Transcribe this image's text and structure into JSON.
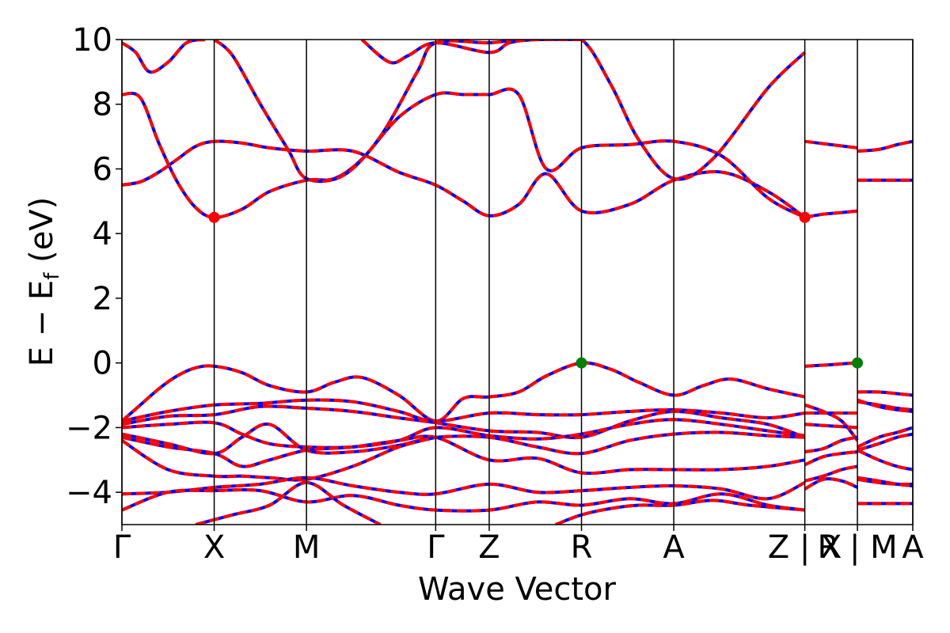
{
  "chart_data": {
    "type": "line",
    "xlabel": "Wave Vector",
    "ylabel": "E − E",
    "ylabel_sub": "f",
    "ylabel_unit": " (eV)",
    "ylim": [
      -5,
      10
    ],
    "y_ticks": [
      -4,
      -2,
      0,
      2,
      4,
      6,
      8,
      10
    ],
    "grid": false,
    "colors": {
      "band_primary": "#ff0000",
      "band_secondary": "#0000ff",
      "cbm_marker": "#ff0000",
      "vbm_marker": "#008000"
    },
    "kpath_segments": [
      {
        "labels": [
          "Γ",
          "X",
          "M",
          "Γ",
          "Z",
          "R",
          "A",
          "Z"
        ],
        "x": [
          0,
          1,
          2,
          3.4,
          3.98,
          4.98,
          5.98,
          7.4
        ]
      },
      {
        "labels": [
          "X",
          "R"
        ],
        "x": [
          7.4,
          7.97
        ]
      },
      {
        "labels": [
          "M",
          "A"
        ],
        "x": [
          7.97,
          8.57
        ]
      }
    ],
    "x_tick_labels": [
      "Γ",
      "X",
      "M",
      "Γ",
      "Z",
      "R",
      "A",
      "Z | X",
      "R | M",
      "A"
    ],
    "x_ticks": [
      0,
      1,
      2,
      3.4,
      3.98,
      4.98,
      5.98,
      7.4,
      7.97,
      8.57
    ],
    "xlim": [
      0,
      8.57
    ],
    "markers": [
      {
        "name": "CBM",
        "x": 1,
        "y": 4.5,
        "color": "#ff0000"
      },
      {
        "name": "CBM",
        "x": 7.4,
        "y": 4.5,
        "color": "#ff0000"
      },
      {
        "name": "VBM",
        "x": 4.98,
        "y": 0.0,
        "color": "#008000"
      },
      {
        "name": "VBM",
        "x": 7.97,
        "y": 0.0,
        "color": "#008000"
      }
    ],
    "series": [
      {
        "segment": 0,
        "x": [
          0,
          0.2,
          0.4,
          0.6,
          0.8,
          1.0,
          1.3,
          1.6,
          2.0,
          2.5,
          3.0,
          3.4,
          3.7,
          3.98,
          4.3,
          4.6,
          4.98,
          5.5,
          5.98,
          6.5,
          7.0,
          7.4
        ],
        "y": [
          5.5,
          5.6,
          5.9,
          6.3,
          6.7,
          6.85,
          6.8,
          6.65,
          6.55,
          6.55,
          5.9,
          5.5,
          5.0,
          4.55,
          4.9,
          5.85,
          4.7,
          4.9,
          5.65,
          5.9,
          5.3,
          4.5
        ]
      },
      {
        "segment": 0,
        "x": [
          0,
          0.2,
          0.4,
          0.6,
          0.8,
          1.0,
          1.3,
          1.6,
          2.0,
          2.3,
          2.6,
          3.0,
          3.4,
          3.7,
          3.98,
          4.3,
          4.6,
          4.98,
          5.5,
          5.98,
          6.5,
          7.0,
          7.4
        ],
        "y": [
          8.3,
          8.2,
          6.8,
          5.6,
          4.8,
          4.5,
          4.75,
          5.3,
          5.65,
          5.7,
          6.3,
          7.6,
          8.3,
          8.3,
          8.3,
          8.3,
          6.0,
          6.65,
          6.75,
          6.85,
          6.4,
          5.1,
          4.5
        ]
      },
      {
        "segment": 0,
        "x": [
          0,
          0.15,
          0.3,
          0.5,
          0.7,
          0.9
        ],
        "y": [
          9.9,
          9.6,
          9.0,
          9.3,
          9.9,
          10.0
        ]
      },
      {
        "segment": 0,
        "x": [
          1.0,
          1.2,
          1.5,
          1.8,
          2.0,
          2.4,
          2.8,
          3.2,
          3.4,
          3.98,
          4.3,
          4.6,
          4.98,
          5.3,
          5.6,
          5.98,
          6.4,
          7.0,
          7.4
        ],
        "y": [
          10.0,
          9.5,
          8.0,
          6.6,
          5.7,
          5.8,
          7.0,
          9.0,
          9.9,
          9.9,
          10.0,
          10.0,
          10.0,
          8.6,
          6.9,
          5.7,
          6.3,
          8.5,
          9.6
        ]
      },
      {
        "segment": 0,
        "x": [
          2.6,
          2.9,
          3.1,
          3.4,
          3.98,
          4.2,
          4.5,
          4.98
        ],
        "y": [
          10.0,
          9.3,
          9.5,
          9.9,
          9.6,
          9.9,
          10.0,
          10.0
        ]
      },
      {
        "segment": 0,
        "x": [
          0,
          0.2,
          0.4,
          0.6,
          0.8,
          1.0,
          1.3,
          1.6,
          2.0,
          2.3,
          2.6,
          3.0,
          3.4,
          3.7,
          3.98,
          4.3,
          4.6,
          4.98,
          5.3,
          5.6,
          5.98,
          6.3,
          6.6,
          7.0,
          7.4
        ],
        "y": [
          -1.8,
          -1.3,
          -0.8,
          -0.4,
          -0.15,
          -0.1,
          -0.3,
          -0.7,
          -0.9,
          -0.6,
          -0.45,
          -1.0,
          -1.8,
          -1.1,
          -1.05,
          -0.9,
          -0.4,
          0.0,
          -0.2,
          -0.6,
          -1.0,
          -0.7,
          -0.5,
          -0.8,
          -1.05
        ]
      },
      {
        "segment": 0,
        "x": [
          0,
          0.5,
          1.0,
          1.5,
          2.0,
          2.5,
          3.0,
          3.4,
          3.98,
          4.5,
          4.98,
          5.5,
          5.98,
          6.5,
          7.0,
          7.4
        ],
        "y": [
          -1.8,
          -1.5,
          -1.3,
          -1.25,
          -1.15,
          -1.2,
          -1.5,
          -1.8,
          -1.55,
          -1.6,
          -1.6,
          -1.5,
          -1.45,
          -1.55,
          -1.7,
          -1.55
        ]
      },
      {
        "segment": 0,
        "x": [
          0,
          0.5,
          1.0,
          1.5,
          2.0,
          2.5,
          3.0,
          3.4,
          3.98,
          4.5,
          4.98,
          5.5,
          5.98,
          6.5,
          7.0,
          7.4
        ],
        "y": [
          -1.9,
          -1.65,
          -1.6,
          -1.35,
          -1.4,
          -1.5,
          -1.7,
          -1.85,
          -2.1,
          -2.15,
          -2.3,
          -1.8,
          -1.5,
          -1.7,
          -1.9,
          -2.3
        ]
      },
      {
        "segment": 0,
        "x": [
          0,
          0.5,
          1.0,
          1.3,
          1.6,
          2.0,
          2.5,
          3.0,
          3.4,
          3.98,
          4.5,
          4.98,
          5.5,
          5.98,
          6.5,
          7.0,
          7.4
        ],
        "y": [
          -2.0,
          -1.9,
          -1.85,
          -2.2,
          -2.5,
          -2.6,
          -2.6,
          -2.4,
          -2.0,
          -2.25,
          -2.35,
          -2.2,
          -1.9,
          -1.75,
          -1.9,
          -2.1,
          -2.25
        ]
      },
      {
        "segment": 0,
        "x": [
          0,
          0.5,
          1.0,
          1.3,
          1.6,
          2.0,
          2.5,
          3.0,
          3.4,
          3.98,
          4.5,
          4.98,
          5.5,
          5.98,
          6.5,
          7.0,
          7.4
        ],
        "y": [
          -2.2,
          -2.5,
          -2.8,
          -2.3,
          -1.9,
          -2.7,
          -2.75,
          -2.55,
          -2.3,
          -2.3,
          -2.6,
          -2.8,
          -2.4,
          -2.2,
          -2.15,
          -2.25,
          -2.3
        ]
      },
      {
        "segment": 0,
        "x": [
          0,
          0.5,
          1.0,
          1.3,
          1.6,
          2.0,
          2.5,
          3.0,
          3.4,
          3.98,
          4.5,
          4.98,
          5.5,
          5.98,
          6.5,
          7.0,
          7.4
        ],
        "y": [
          -2.3,
          -2.6,
          -2.8,
          -3.2,
          -3.0,
          -2.7,
          -2.6,
          -2.4,
          -2.3,
          -3.0,
          -2.95,
          -3.4,
          -3.3,
          -3.3,
          -3.3,
          -3.2,
          -3.0
        ]
      },
      {
        "segment": 0,
        "x": [
          0,
          0.5,
          1.0,
          1.3,
          1.6,
          2.0,
          2.5,
          3.0,
          3.4
        ],
        "y": [
          -2.4,
          -3.3,
          -3.5,
          -3.5,
          -3.55,
          -3.6,
          -3.2,
          -2.6,
          -2.3
        ]
      },
      {
        "segment": 0,
        "x": [
          0,
          0.5,
          1.0,
          1.5,
          2.0,
          2.5,
          3.0,
          3.4,
          3.98,
          4.5,
          4.98,
          5.5,
          5.98,
          6.5,
          7.0,
          7.4
        ],
        "y": [
          -4.05,
          -4.0,
          -3.85,
          -3.75,
          -3.55,
          -3.8,
          -4.0,
          -4.05,
          -3.75,
          -4.0,
          -3.95,
          -3.85,
          -3.8,
          -3.9,
          -4.2,
          -3.7
        ]
      },
      {
        "segment": 0,
        "x": [
          0,
          0.5,
          1.0,
          1.5,
          2.0,
          2.5,
          3.0,
          3.4,
          3.98,
          4.5,
          4.98,
          5.5,
          5.98,
          6.5,
          7.0,
          7.4
        ],
        "y": [
          -4.55,
          -4.0,
          -3.95,
          -3.95,
          -4.3,
          -4.1,
          -4.4,
          -4.55,
          -4.55,
          -4.3,
          -4.4,
          -4.2,
          -4.35,
          -4.05,
          -4.4,
          -4.55
        ]
      },
      {
        "segment": 0,
        "x": [
          0.8,
          1.2,
          1.6,
          2.0,
          2.4,
          2.8
        ],
        "y": [
          -5.0,
          -4.7,
          -4.4,
          -3.7,
          -4.4,
          -5.0
        ]
      },
      {
        "segment": 0,
        "x": [
          4.7,
          4.98,
          5.3,
          5.6,
          5.98,
          6.4,
          6.8,
          7.4
        ],
        "y": [
          -5.0,
          -4.7,
          -4.5,
          -4.4,
          -4.4,
          -4.25,
          -4.4,
          -4.55
        ]
      },
      {
        "segment": 1,
        "x": [
          7.4,
          7.97
        ],
        "y": [
          6.85,
          6.65
        ]
      },
      {
        "segment": 1,
        "x": [
          7.4,
          7.6,
          7.8,
          7.97
        ],
        "y": [
          4.5,
          4.6,
          4.65,
          4.7
        ]
      },
      {
        "segment": 1,
        "x": [
          7.4,
          7.6,
          7.8,
          7.97
        ],
        "y": [
          -0.1,
          -0.07,
          -0.03,
          0.0
        ]
      },
      {
        "segment": 1,
        "x": [
          7.4,
          7.97
        ],
        "y": [
          -1.55,
          -1.55
        ]
      },
      {
        "segment": 1,
        "x": [
          7.4,
          7.6,
          7.8,
          7.97
        ],
        "y": [
          -1.3,
          -1.5,
          -1.8,
          -2.4
        ]
      },
      {
        "segment": 1,
        "x": [
          7.4,
          7.97
        ],
        "y": [
          -1.9,
          -2.0
        ]
      },
      {
        "segment": 1,
        "x": [
          7.4,
          7.6,
          7.8,
          7.97
        ],
        "y": [
          -2.75,
          -2.65,
          -2.4,
          -2.3
        ]
      },
      {
        "segment": 1,
        "x": [
          7.4,
          7.6,
          7.8,
          7.97
        ],
        "y": [
          -3.15,
          -2.9,
          -2.8,
          -2.75
        ]
      },
      {
        "segment": 1,
        "x": [
          7.4,
          7.6,
          7.8,
          7.97
        ],
        "y": [
          -3.65,
          -3.5,
          -3.3,
          -3.2
        ]
      },
      {
        "segment": 1,
        "x": [
          7.4,
          7.6,
          7.8,
          7.97
        ],
        "y": [
          -3.9,
          -3.6,
          -3.65,
          -3.85
        ]
      },
      {
        "segment": 2,
        "x": [
          7.97,
          8.2,
          8.4,
          8.57
        ],
        "y": [
          6.55,
          6.6,
          6.75,
          6.85
        ]
      },
      {
        "segment": 2,
        "x": [
          7.97,
          8.57
        ],
        "y": [
          5.65,
          5.65
        ]
      },
      {
        "segment": 2,
        "x": [
          7.97,
          8.2,
          8.4,
          8.57
        ],
        "y": [
          -0.9,
          -0.9,
          -0.95,
          -1.0
        ]
      },
      {
        "segment": 2,
        "x": [
          7.97,
          8.2,
          8.4,
          8.57
        ],
        "y": [
          -1.2,
          -1.3,
          -1.4,
          -1.45
        ]
      },
      {
        "segment": 2,
        "x": [
          7.97,
          8.2,
          8.4,
          8.57
        ],
        "y": [
          -1.15,
          -1.35,
          -1.45,
          -1.5
        ]
      },
      {
        "segment": 2,
        "x": [
          7.97,
          8.2,
          8.4,
          8.57
        ],
        "y": [
          -2.6,
          -2.3,
          -2.15,
          -2.0
        ]
      },
      {
        "segment": 2,
        "x": [
          7.97,
          8.2,
          8.4,
          8.57
        ],
        "y": [
          -2.7,
          -2.5,
          -2.3,
          -2.2
        ]
      },
      {
        "segment": 2,
        "x": [
          7.97,
          8.2,
          8.4,
          8.57
        ],
        "y": [
          -2.7,
          -3.0,
          -3.2,
          -3.3
        ]
      },
      {
        "segment": 2,
        "x": [
          7.97,
          8.2,
          8.4,
          8.57
        ],
        "y": [
          -3.55,
          -3.65,
          -3.75,
          -3.8
        ]
      },
      {
        "segment": 2,
        "x": [
          7.97,
          8.2,
          8.4,
          8.57
        ],
        "y": [
          -3.6,
          -3.7,
          -3.75,
          -3.75
        ]
      },
      {
        "segment": 2,
        "x": [
          7.97,
          8.57
        ],
        "y": [
          -4.35,
          -4.35
        ]
      }
    ]
  }
}
